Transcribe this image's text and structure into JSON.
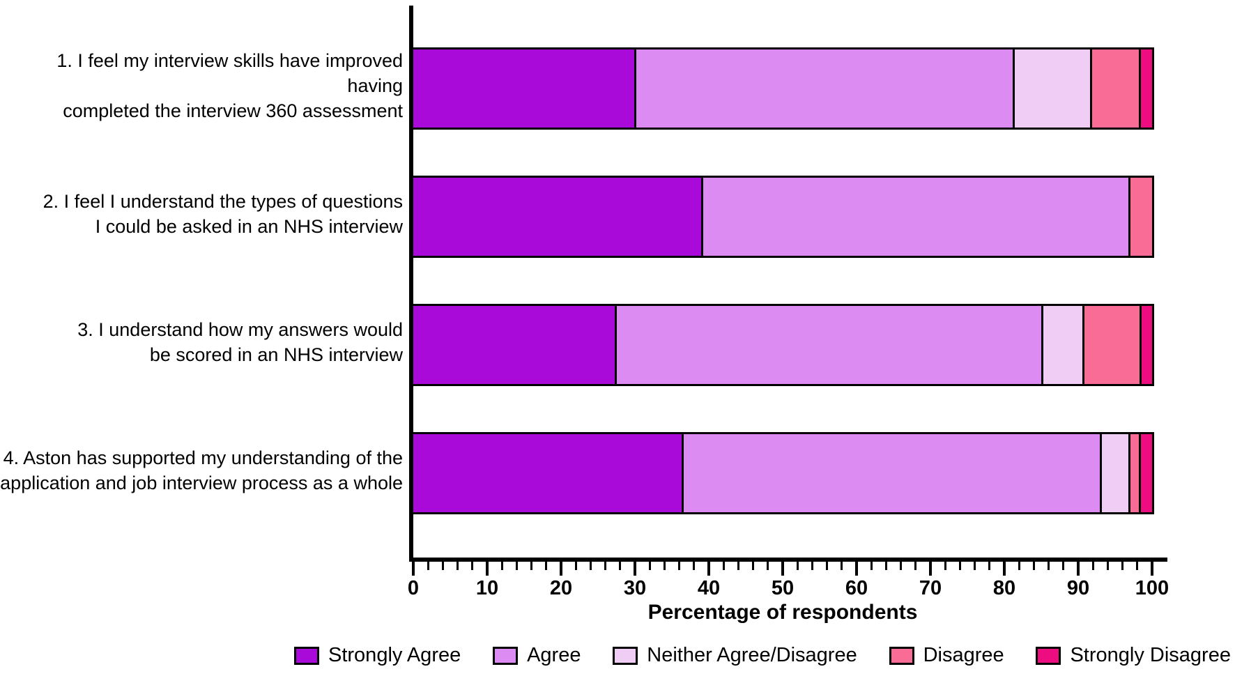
{
  "chart_data": {
    "type": "bar",
    "orientation": "horizontal",
    "stacked": true,
    "title": "",
    "xlabel": "Percentage of respondents",
    "ylabel": "",
    "xlim": [
      0,
      100
    ],
    "xticks": [
      0,
      10,
      20,
      30,
      40,
      50,
      60,
      70,
      80,
      90,
      100
    ],
    "minor_tick_step": 2,
    "grid": false,
    "legend_position": "bottom",
    "categories": [
      "1. I feel my interview skills have improved having completed the interview 360 assessment",
      "2. I feel I understand the types of questions I could be asked in an NHS interview",
      "3. I understand how my answers would be scored in an NHS interview",
      "4. Aston has supported my understanding of the application and job interview process as a whole"
    ],
    "label_lines": [
      [
        "1. I feel my interview skills have improved having",
        "completed the interview 360 assessment"
      ],
      [
        "2. I feel I understand the types of questions",
        "I could be asked in an NHS interview"
      ],
      [
        "3. I understand how my answers would",
        "be scored in an NHS interview"
      ],
      [
        "4. Aston has supported my understanding of the",
        "application and job interview process as a whole"
      ]
    ],
    "series": [
      {
        "name": "Strongly Agree",
        "color": "#A90ADA",
        "values": [
          30.2,
          39.2,
          27.5,
          36.6
        ]
      },
      {
        "name": "Agree",
        "color": "#DC8BF2",
        "values": [
          51.2,
          57.9,
          57.8,
          56.6
        ]
      },
      {
        "name": "Neither Agree/Disagree",
        "color": "#F0CDF4",
        "values": [
          10.5,
          0.0,
          5.5,
          3.9
        ]
      },
      {
        "name": "Disagree",
        "color": "#F96C96",
        "values": [
          6.6,
          2.9,
          7.8,
          1.4
        ]
      },
      {
        "name": "Strongly Disagree",
        "color": "#EE0D80",
        "values": [
          1.5,
          0.0,
          1.4,
          1.5
        ]
      }
    ],
    "axis_color": "#000000",
    "segment_border_color": "#000000"
  }
}
